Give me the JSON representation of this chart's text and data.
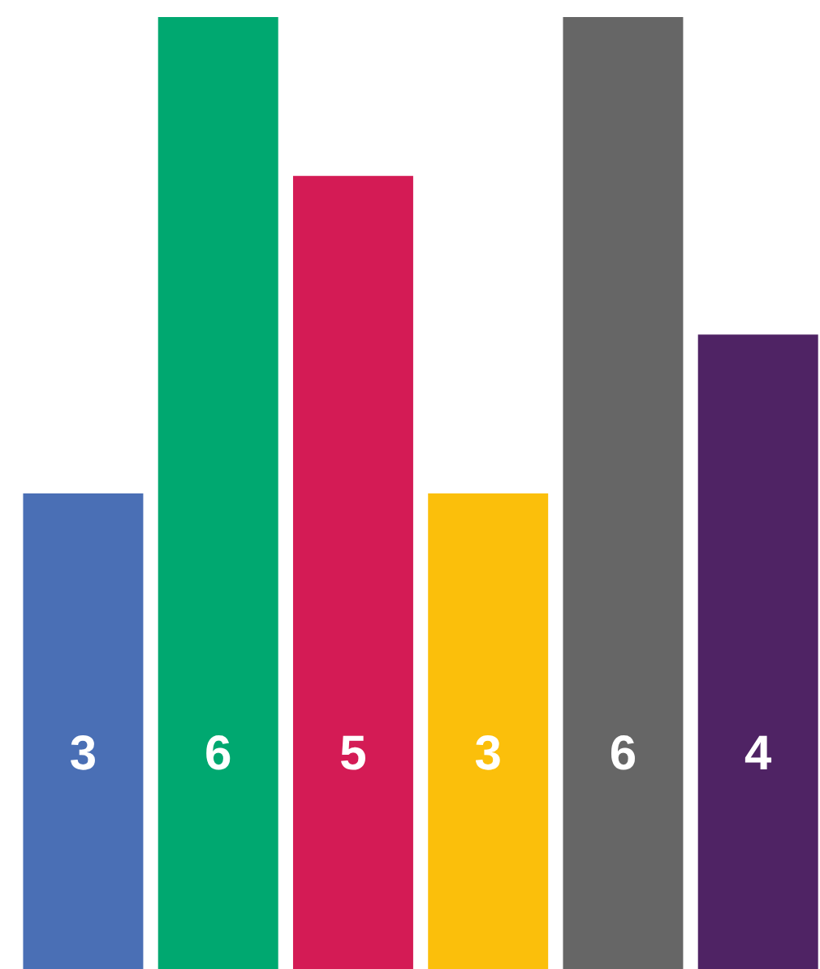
{
  "chart_data": {
    "type": "bar",
    "categories": [
      null,
      null,
      null,
      null,
      null,
      null
    ],
    "values": [
      3,
      6,
      5,
      3,
      6,
      4
    ],
    "colors": [
      "#4a6fb5",
      "#00a870",
      "#d41b55",
      "#fbbf0b",
      "#666666",
      "#4f2364"
    ],
    "ylim": [
      0,
      6
    ],
    "data_labels": true
  }
}
